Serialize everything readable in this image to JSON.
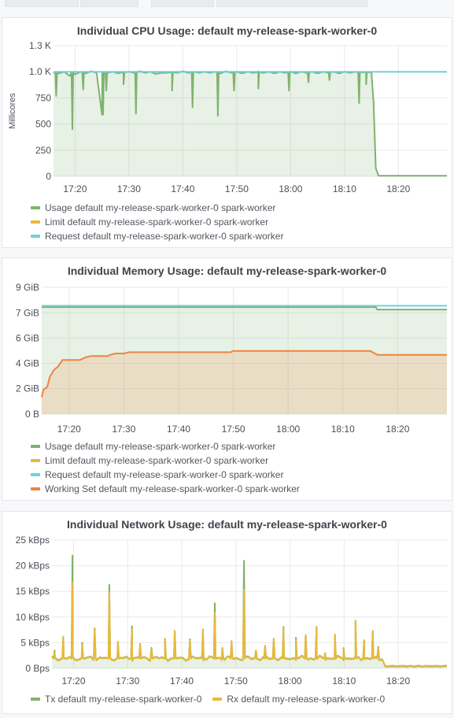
{
  "colors": {
    "green": "#7eb26d",
    "yellow": "#eab839",
    "cyan": "#6ed0e0",
    "orange": "#ef843c",
    "grid": "#e9e9e9"
  },
  "chart_data": [
    {
      "type": "line",
      "title": "Individual CPU Usage: default my-release-spark-worker-0",
      "ylabel": "Millicores",
      "y_ticks": [
        "1.3 K",
        "1.0 K",
        "750",
        "500",
        "250",
        "0"
      ],
      "y_tick_values": [
        1250,
        1000,
        750,
        500,
        250,
        0
      ],
      "ylim": [
        0,
        1250
      ],
      "x_ticks": [
        "17:20",
        "17:30",
        "17:40",
        "17:50",
        "18:00",
        "18:10",
        "18:20"
      ],
      "x_tick_values": [
        1040,
        1050,
        1060,
        1070,
        1080,
        1090,
        1100
      ],
      "xlim": [
        1036,
        1109
      ],
      "series": [
        {
          "name": "Usage default my-release-spark-worker-0 spark-worker",
          "color": "#7eb26d",
          "fill": true,
          "points": [
            [
              1036,
              990
            ],
            [
              1036.5,
              770
            ],
            [
              1037,
              985
            ],
            [
              1038,
              1000
            ],
            [
              1039,
              960
            ],
            [
              1039.5,
              450
            ],
            [
              1040,
              975
            ],
            [
              1041,
              1000
            ],
            [
              1042,
              985
            ],
            [
              1043,
              1005
            ],
            [
              1044,
              990
            ],
            [
              1045,
              590
            ],
            [
              1046,
              990
            ],
            [
              1047,
              1000
            ],
            [
              1048,
              985
            ],
            [
              1049,
              980
            ],
            [
              1050,
              1000
            ],
            [
              1051,
              990
            ],
            [
              1052,
              1005
            ],
            [
              1053,
              990
            ],
            [
              1054,
              1000
            ],
            [
              1055,
              980
            ],
            [
              1056,
              990
            ],
            [
              1057,
              990
            ],
            [
              1058,
              1000
            ],
            [
              1059,
              990
            ],
            [
              1060,
              1005
            ],
            [
              1061,
              990
            ],
            [
              1062,
              1000
            ],
            [
              1063,
              990
            ],
            [
              1064,
              1000
            ],
            [
              1065,
              990
            ],
            [
              1066,
              1000
            ],
            [
              1067,
              985
            ],
            [
              1068,
              1005
            ],
            [
              1069,
              990
            ],
            [
              1070,
              1000
            ],
            [
              1071,
              985
            ],
            [
              1072,
              1000
            ],
            [
              1073,
              990
            ],
            [
              1074,
              1005
            ],
            [
              1075,
              990
            ],
            [
              1076,
              1000
            ],
            [
              1077,
              985
            ],
            [
              1078,
              1000
            ],
            [
              1079,
              990
            ],
            [
              1080,
              1000
            ],
            [
              1081,
              985
            ],
            [
              1082,
              1000
            ],
            [
              1083,
              990
            ],
            [
              1084,
              1000
            ],
            [
              1085,
              985
            ],
            [
              1086,
              1000
            ],
            [
              1087,
              990
            ],
            [
              1088,
              1000
            ],
            [
              1089,
              985
            ],
            [
              1090,
              1000
            ],
            [
              1091,
              990
            ],
            [
              1092,
              1000
            ],
            [
              1093,
              995
            ],
            [
              1094,
              995
            ],
            [
              1095,
              995
            ],
            [
              1095.4,
              700
            ],
            [
              1095.8,
              80
            ],
            [
              1096.3,
              5
            ],
            [
              1097,
              5
            ],
            [
              1100,
              5
            ],
            [
              1105,
              5
            ],
            [
              1109,
              5
            ]
          ],
          "dips": [
            [
              1036.5,
              770
            ],
            [
              1039.5,
              450
            ],
            [
              1041.5,
              830
            ],
            [
              1045.2,
              590
            ],
            [
              1045.8,
              820
            ],
            [
              1049,
              880
            ],
            [
              1051.3,
              600
            ],
            [
              1058,
              820
            ],
            [
              1061.8,
              660
            ],
            [
              1066.5,
              580
            ],
            [
              1069.5,
              820
            ],
            [
              1074,
              840
            ],
            [
              1079.7,
              820
            ],
            [
              1083.3,
              900
            ],
            [
              1087.2,
              920
            ],
            [
              1092.7,
              700
            ],
            [
              1094,
              880
            ]
          ]
        },
        {
          "name": "Limit default my-release-spark-worker-0 spark-worker",
          "color": "#eab839",
          "fill": false,
          "points": []
        },
        {
          "name": "Request default my-release-spark-worker-0 spark-worker",
          "color": "#6ed0e0",
          "fill": false,
          "points": [
            [
              1036,
              1000
            ],
            [
              1109,
              1000
            ]
          ]
        }
      ]
    },
    {
      "type": "line",
      "title": "Individual Memory Usage: default my-release-spark-worker-0",
      "ylabel": "",
      "y_ticks": [
        "9 GiB",
        "7 GiB",
        "6 GiB",
        "4 GiB",
        "2 GiB",
        "0 B"
      ],
      "y_tick_values": [
        9.83,
        7.86,
        5.9,
        3.93,
        1.97,
        0
      ],
      "ylim": [
        0,
        9.83
      ],
      "x_ticks": [
        "17:20",
        "17:30",
        "17:40",
        "17:50",
        "18:00",
        "18:10",
        "18:20"
      ],
      "x_tick_values": [
        1040,
        1050,
        1060,
        1070,
        1080,
        1090,
        1100
      ],
      "xlim": [
        1035,
        1109
      ],
      "series": [
        {
          "name": "Usage default my-release-spark-worker-0 spark-worker",
          "color": "#7eb26d",
          "fill": true,
          "points": [
            [
              1035,
              8.3
            ],
            [
              1096,
              8.3
            ],
            [
              1096.3,
              8.1
            ],
            [
              1109,
              8.1
            ]
          ]
        },
        {
          "name": "Limit default my-release-spark-worker-0 spark-worker",
          "color": "#eab839",
          "fill": false,
          "points": []
        },
        {
          "name": "Request default my-release-spark-worker-0 spark-worker",
          "color": "#6ed0e0",
          "fill": false,
          "points": [
            [
              1035,
              8.4
            ],
            [
              1109,
              8.4
            ]
          ]
        },
        {
          "name": "Working Set default my-release-spark-worker-0 spark-worker",
          "color": "#ef843c",
          "fill": true,
          "points": [
            [
              1035,
              1.3
            ],
            [
              1035.3,
              1.9
            ],
            [
              1036,
              2.1
            ],
            [
              1036.5,
              2.9
            ],
            [
              1037.2,
              3.4
            ],
            [
              1038,
              3.7
            ],
            [
              1038.8,
              4.2
            ],
            [
              1042,
              4.2
            ],
            [
              1043,
              4.4
            ],
            [
              1044,
              4.5
            ],
            [
              1047,
              4.5
            ],
            [
              1047.5,
              4.6
            ],
            [
              1048.5,
              4.7
            ],
            [
              1050,
              4.7
            ],
            [
              1051,
              4.8
            ],
            [
              1066,
              4.8
            ],
            [
              1069.5,
              4.8
            ],
            [
              1070,
              4.9
            ],
            [
              1080,
              4.9
            ],
            [
              1095,
              4.9
            ],
            [
              1096.3,
              4.6
            ],
            [
              1109,
              4.6
            ]
          ]
        }
      ]
    },
    {
      "type": "line",
      "title": "Individual Network Usage: default my-release-spark-worker-0",
      "ylabel": "",
      "y_ticks": [
        "25 kBps",
        "20 kBps",
        "15 kBps",
        "10 kBps",
        "5 kBps",
        "0 Bps"
      ],
      "y_tick_values": [
        25,
        20,
        15,
        10,
        5,
        0
      ],
      "ylim": [
        0,
        25
      ],
      "x_ticks": [
        "17:20",
        "17:30",
        "17:40",
        "17:50",
        "18:00",
        "18:10",
        "18:20"
      ],
      "x_tick_values": [
        1040,
        1050,
        1060,
        1070,
        1080,
        1090,
        1100
      ],
      "xlim": [
        1036,
        1109
      ],
      "series": [
        {
          "name": "Tx default my-release-spark-worker-0",
          "color": "#7eb26d",
          "fill": true,
          "base": 2.0,
          "tail_after": 1097.3,
          "tail_value": 0.4,
          "spikes": [
            [
              1036.5,
              3.5
            ],
            [
              1038.1,
              6.2
            ],
            [
              1039.8,
              22
            ],
            [
              1041.6,
              5
            ],
            [
              1043.9,
              7.8
            ],
            [
              1046.6,
              16.3
            ],
            [
              1048.2,
              5.2
            ],
            [
              1050.8,
              8.2
            ],
            [
              1052.3,
              4.8
            ],
            [
              1054.4,
              4
            ],
            [
              1056.9,
              5.8
            ],
            [
              1058.7,
              7.3
            ],
            [
              1061.5,
              5.7
            ],
            [
              1063.9,
              7.6
            ],
            [
              1066.1,
              12.7
            ],
            [
              1067.5,
              4
            ],
            [
              1069.2,
              5.3
            ],
            [
              1071.5,
              21
            ],
            [
              1073.7,
              3.5
            ],
            [
              1075.4,
              4.4
            ],
            [
              1077,
              5.8
            ],
            [
              1078.8,
              8.1
            ],
            [
              1081.1,
              6
            ],
            [
              1082.9,
              6.5
            ],
            [
              1084.9,
              8.1
            ],
            [
              1086.5,
              3
            ],
            [
              1088.3,
              6.5
            ],
            [
              1089.9,
              4
            ],
            [
              1092.1,
              9.3
            ],
            [
              1093.7,
              5.5
            ],
            [
              1095.3,
              7.3
            ],
            [
              1096.3,
              4.2
            ]
          ]
        },
        {
          "name": "Rx default my-release-spark-worker-0",
          "color": "#eab839",
          "fill": false,
          "base": 1.9,
          "tail_after": 1097.3,
          "tail_value": 0.5,
          "spikes": [
            [
              1036.5,
              3.2
            ],
            [
              1038.1,
              6.1
            ],
            [
              1039.8,
              16.8
            ],
            [
              1041.6,
              4.6
            ],
            [
              1043.9,
              7.6
            ],
            [
              1046.6,
              14.8
            ],
            [
              1048.2,
              5.2
            ],
            [
              1050.8,
              7.5
            ],
            [
              1052.3,
              4.8
            ],
            [
              1054.4,
              3.8
            ],
            [
              1056.9,
              5.8
            ],
            [
              1058.7,
              7.2
            ],
            [
              1061.5,
              5.4
            ],
            [
              1063.9,
              7.5
            ],
            [
              1066.1,
              10.8
            ],
            [
              1067.5,
              4
            ],
            [
              1069.2,
              5.2
            ],
            [
              1071.5,
              15.3
            ],
            [
              1073.7,
              3.5
            ],
            [
              1075.4,
              4.3
            ],
            [
              1077,
              5.8
            ],
            [
              1078.8,
              7.8
            ],
            [
              1081.1,
              5.5
            ],
            [
              1082.9,
              6.5
            ],
            [
              1084.9,
              8
            ],
            [
              1086.5,
              3
            ],
            [
              1088.3,
              6.6
            ],
            [
              1089.9,
              4
            ],
            [
              1092.1,
              9.2
            ],
            [
              1093.7,
              5.5
            ],
            [
              1095.3,
              7.2
            ],
            [
              1096.3,
              4
            ]
          ]
        }
      ]
    }
  ]
}
